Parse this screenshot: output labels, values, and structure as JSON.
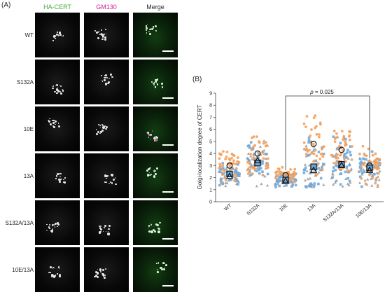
{
  "panel_a": {
    "label": "(A)",
    "columns": [
      {
        "label": "HA-CERT",
        "color": "#3fae3f"
      },
      {
        "label": "GM130",
        "color": "#d02090"
      },
      {
        "label": "Merge",
        "color": "#222222"
      }
    ],
    "rows": [
      "WT",
      "S132A",
      "10E",
      "13A",
      "S132A/13A",
      "10E/13A"
    ]
  },
  "panel_b": {
    "label": "(B)",
    "annotation": {
      "p_label": "p",
      "p_value": " = 0.025"
    }
  },
  "chart_data": {
    "type": "scatter",
    "title": "",
    "ylabel": "Golgi-localization degree of CERT",
    "xlabel": "",
    "categories": [
      "WT",
      "S132A",
      "10E",
      "13A",
      "S132A/13A",
      "10E/13A"
    ],
    "ylim": [
      0,
      9
    ],
    "yticks": [
      0,
      1,
      2,
      3,
      4,
      5,
      6,
      7,
      8,
      9
    ],
    "colors": {
      "circle": "#f5a05a",
      "square": "#6fa8dc",
      "triangle": "#9e9e9e"
    },
    "replicate_means": {
      "circle": [
        3.0,
        4.0,
        2.2,
        4.8,
        4.3,
        3.0
      ],
      "square": [
        2.3,
        3.2,
        1.8,
        2.9,
        3.1,
        2.8
      ],
      "triangle": [
        2.1,
        3.4,
        1.7,
        2.6,
        3.0,
        2.6
      ]
    },
    "significance": {
      "from": "10E",
      "to": "10E/13A",
      "p": 0.025
    }
  }
}
